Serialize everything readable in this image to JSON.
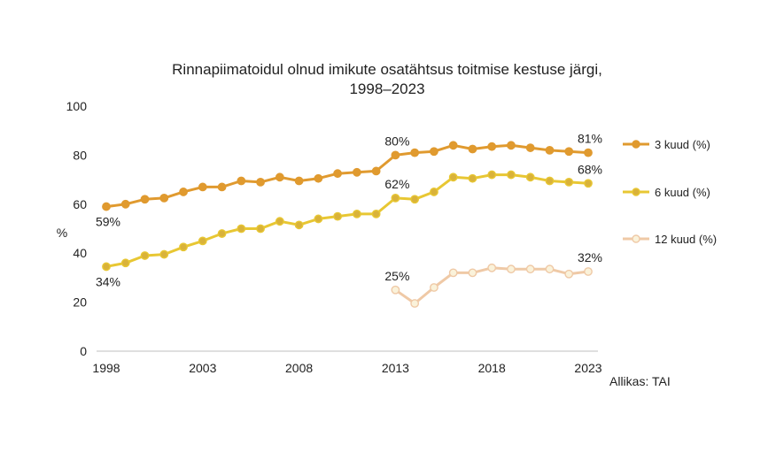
{
  "chart_data": {
    "type": "line",
    "title_lines": [
      "Rinnapiimatoidul olnud imikute osatähtsus toitmise kestuse järgi,",
      "1998–2023"
    ],
    "ylabel": "%",
    "ylim": [
      0,
      100
    ],
    "yticks": [
      0,
      20,
      40,
      60,
      80,
      100
    ],
    "xlim": [
      1998,
      2023
    ],
    "xticks": [
      1998,
      2003,
      2008,
      2013,
      2018,
      2023
    ],
    "grid": false,
    "legend_position": "right",
    "source": "Allikas: TAI",
    "series": [
      {
        "name": "3 kuud (%)",
        "color": "#E09A2F",
        "marker_fill": "#E09A2F",
        "x": [
          1998,
          1999,
          2000,
          2001,
          2002,
          2003,
          2004,
          2005,
          2006,
          2007,
          2008,
          2009,
          2010,
          2011,
          2012,
          2013,
          2014,
          2015,
          2016,
          2017,
          2018,
          2019,
          2020,
          2021,
          2022,
          2023
        ],
        "values": [
          59,
          60,
          62,
          62.5,
          65,
          67,
          67,
          69.5,
          69,
          71,
          69.5,
          70.5,
          72.5,
          73,
          73.5,
          80,
          81,
          81.5,
          84,
          82.5,
          83.5,
          84,
          83,
          82,
          81.5,
          81
        ],
        "labels": [
          {
            "x": 1998,
            "text": "59%",
            "pos": "below"
          },
          {
            "x": 2013,
            "text": "80%",
            "pos": "above"
          },
          {
            "x": 2023,
            "text": "81%",
            "pos": "above"
          }
        ]
      },
      {
        "name": "6 kuud (%)",
        "color": "#E8C733",
        "marker_fill": "#D9B23A",
        "x": [
          1998,
          1999,
          2000,
          2001,
          2002,
          2003,
          2004,
          2005,
          2006,
          2007,
          2008,
          2009,
          2010,
          2011,
          2012,
          2013,
          2014,
          2015,
          2016,
          2017,
          2018,
          2019,
          2020,
          2021,
          2022,
          2023
        ],
        "values": [
          34.5,
          36,
          39,
          39.5,
          42.5,
          45,
          48,
          50,
          50,
          53,
          51.5,
          54,
          55,
          56,
          56,
          62.5,
          62,
          65,
          71,
          70.5,
          72,
          72,
          71,
          69.5,
          69,
          68.5
        ],
        "labels": [
          {
            "x": 1998,
            "text": "34%",
            "pos": "below"
          },
          {
            "x": 2013,
            "text": "62%",
            "pos": "above"
          },
          {
            "x": 2023,
            "text": "68%",
            "pos": "above"
          }
        ]
      },
      {
        "name": "12 kuud (%)",
        "color": "#EFC9A6",
        "marker_fill": "#FAF2DA",
        "x": [
          2013,
          2014,
          2015,
          2016,
          2017,
          2018,
          2019,
          2020,
          2021,
          2022,
          2023
        ],
        "values": [
          25,
          19.5,
          26,
          32,
          32,
          34,
          33.5,
          33.5,
          33.5,
          31.5,
          32.5
        ],
        "labels": [
          {
            "x": 2013,
            "text": "25%",
            "pos": "above"
          },
          {
            "x": 2023,
            "text": "32%",
            "pos": "above"
          }
        ]
      }
    ]
  }
}
